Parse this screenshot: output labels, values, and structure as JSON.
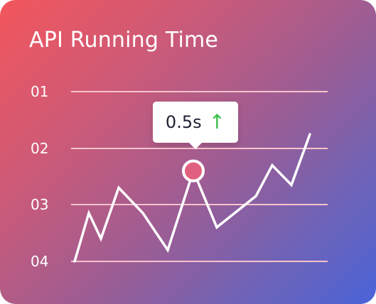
{
  "title": "API Running Time",
  "colors": {
    "gradient_start": "#f3565c",
    "gradient_end": "#4a63d9",
    "line": "#ffffff",
    "gridline": "#f7c3cc",
    "marker_fill": "#e2607f",
    "trend_up": "#3bbf4a"
  },
  "tooltip": {
    "value": "0.5s",
    "trend_icon": "up-arrow-icon",
    "trend_symbol": "↑"
  },
  "chart_data": {
    "type": "line",
    "title": "API Running Time",
    "yticks": [
      "01",
      "02",
      "03",
      "04"
    ],
    "ylim": [
      0.6,
      4.0
    ],
    "grid": true,
    "series": [
      {
        "values": [
          4.0,
          3.15,
          3.6,
          2.7,
          3.15,
          3.8,
          2.4,
          3.4,
          2.85,
          2.3,
          2.65,
          1.75
        ]
      }
    ],
    "highlight": {
      "index": 6,
      "label": "0.5s",
      "trend": "up"
    }
  }
}
